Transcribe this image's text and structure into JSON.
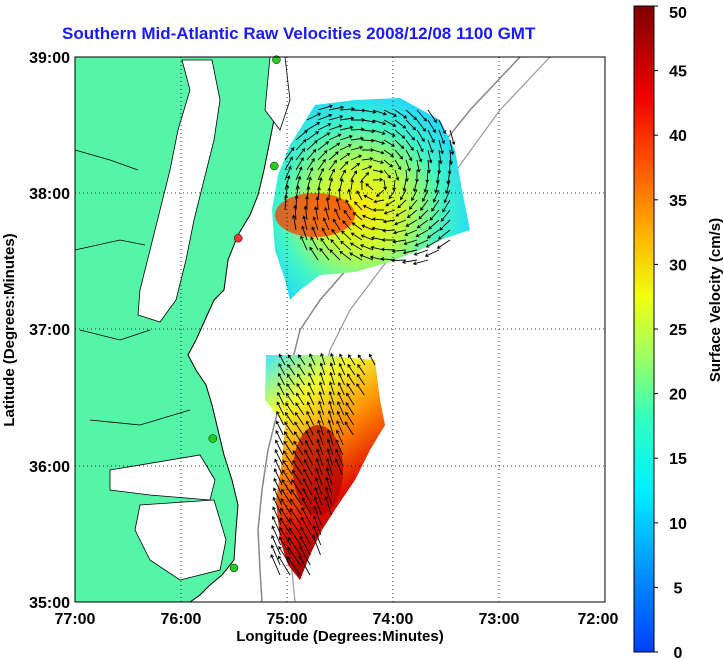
{
  "title": "Southern Mid-Atlantic Raw Velocities 2008/12/08 1100 GMT",
  "x_axis": {
    "label": "Longitude (Degrees:Minutes)",
    "ticks": [
      "77:00",
      "76:00",
      "75:00",
      "74:00",
      "73:00",
      "72:00"
    ]
  },
  "y_axis": {
    "label": "Latitude (Degrees:Minutes)",
    "ticks": [
      "39:00",
      "38:00",
      "37:00",
      "36:00",
      "35:00"
    ]
  },
  "colorbar": {
    "label": "Surface Velocity (cm/s)",
    "ticks": [
      "50",
      "45",
      "40",
      "35",
      "30",
      "25",
      "20",
      "15",
      "10",
      "5",
      "0"
    ],
    "min": 0,
    "max": 50
  },
  "map": {
    "lon_range": [
      -77,
      -72
    ],
    "lat_range": [
      35,
      39
    ],
    "grid": true,
    "land_color": "#55f5a8",
    "station_color_active": "#22cc22",
    "station_color_inactive": "#ee3333"
  },
  "stations": [
    {
      "lon": -75.1,
      "lat": 38.98,
      "status": "active"
    },
    {
      "lon": -75.12,
      "lat": 38.2,
      "status": "active"
    },
    {
      "lon": -75.46,
      "lat": 37.67,
      "status": "inactive"
    },
    {
      "lon": -75.7,
      "lat": 36.2,
      "status": "active"
    },
    {
      "lon": -75.5,
      "lat": 35.25,
      "status": "active"
    }
  ]
}
